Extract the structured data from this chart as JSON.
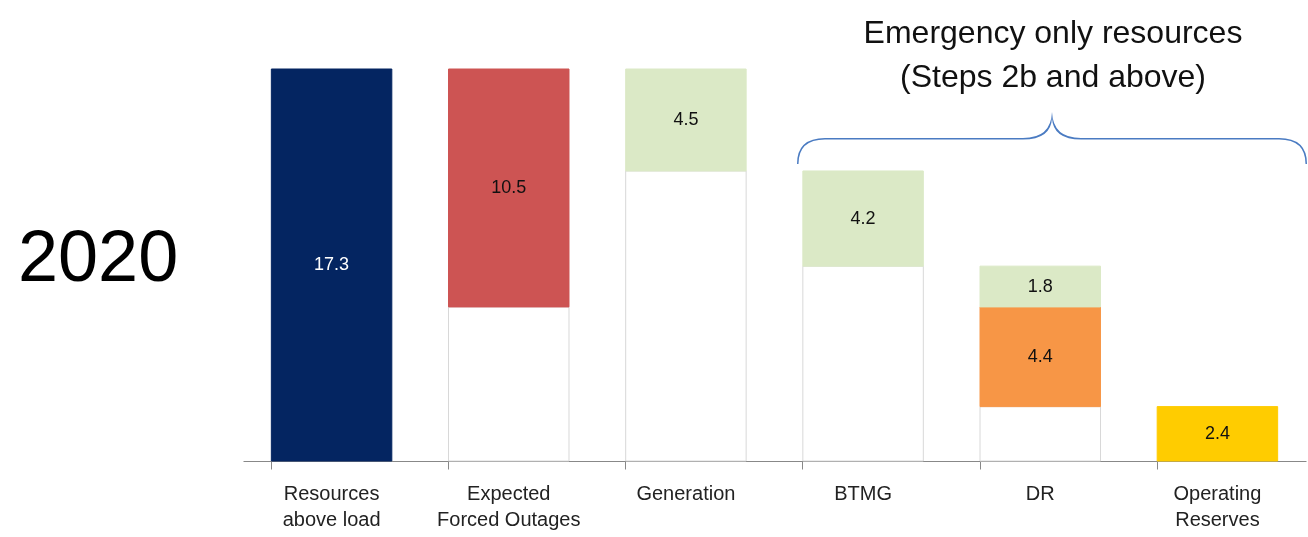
{
  "chart_data": {
    "type": "bar",
    "stacked": true,
    "categories": [
      "Resources above load",
      "Expected Forced Outages",
      "Generation",
      "BTMG",
      "DR",
      "Operating Reserves"
    ],
    "series": [
      {
        "color": "#ffffff",
        "values": [
          null,
          6.8,
          12.8,
          8.6,
          2.4,
          null
        ]
      },
      {
        "color": "#042561",
        "values": [
          17.3,
          null,
          null,
          null,
          null,
          null
        ],
        "value_labels": [
          "17.3",
          null,
          null,
          null,
          null,
          null
        ]
      },
      {
        "color": "#cd5453",
        "values": [
          null,
          10.5,
          null,
          null,
          null,
          null
        ],
        "value_labels": [
          null,
          "10.5",
          null,
          null,
          null,
          null
        ]
      },
      {
        "color": "#f79646",
        "values": [
          null,
          null,
          null,
          null,
          4.4,
          null
        ],
        "value_labels": [
          null,
          null,
          null,
          null,
          "4.4",
          null
        ]
      },
      {
        "color": "#dbe9c6",
        "values": [
          null,
          null,
          4.5,
          4.2,
          1.8,
          null
        ],
        "value_labels": [
          null,
          null,
          "4.5",
          "4.2",
          "1.8",
          null
        ]
      },
      {
        "color": "#ffcc00",
        "values": [
          null,
          null,
          null,
          null,
          null,
          2.4
        ],
        "value_labels": [
          null,
          null,
          null,
          null,
          null,
          "2.4"
        ]
      }
    ],
    "annotations": [
      "2020",
      "Emergency only resources (Steps 2b and above)"
    ],
    "grid": false
  }
}
